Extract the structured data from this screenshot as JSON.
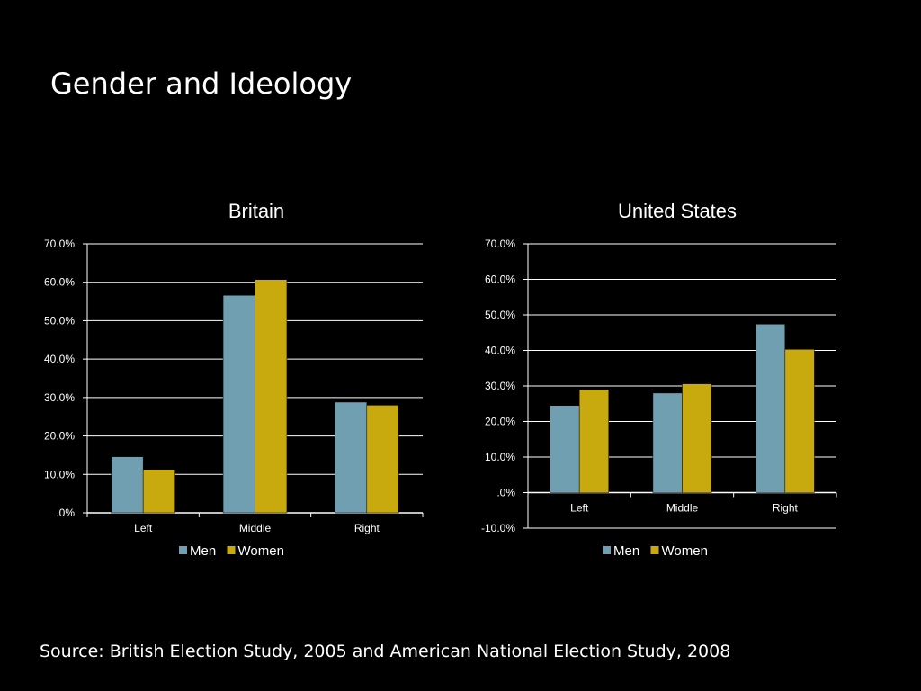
{
  "slide": {
    "title": "Gender and Ideology",
    "source": "Source: British Election Study, 2005 and American National Election Study, 2008"
  },
  "colors": {
    "background": "#000000",
    "men": "#6f9fb1",
    "women": "#c9aa0e",
    "text": "#ffffff",
    "grid": "#ffffff"
  },
  "chart_data": [
    {
      "type": "bar",
      "title": "Britain",
      "categories": [
        "Left",
        "Middle",
        "Right"
      ],
      "series": [
        {
          "name": "Men",
          "values": [
            14.6,
            56.6,
            28.8
          ]
        },
        {
          "name": "Women",
          "values": [
            11.3,
            60.7,
            28.0
          ]
        }
      ],
      "ylim": [
        0,
        70
      ],
      "yticks": [
        ".0%",
        "10.0%",
        "20.0%",
        "30.0%",
        "40.0%",
        "50.0%",
        "60.0%",
        "70.0%"
      ],
      "xlabel": "",
      "ylabel": "",
      "grid": true,
      "legend": "bottom"
    },
    {
      "type": "bar",
      "title": "United States",
      "categories": [
        "Left",
        "Middle",
        "Right"
      ],
      "series": [
        {
          "name": "Men",
          "values": [
            24.5,
            28.0,
            47.4
          ]
        },
        {
          "name": "Women",
          "values": [
            29.0,
            30.6,
            40.3
          ]
        }
      ],
      "ylim": [
        -10,
        70
      ],
      "yticks": [
        "-10.0%",
        ".0%",
        "10.0%",
        "20.0%",
        "30.0%",
        "40.0%",
        "50.0%",
        "60.0%",
        "70.0%"
      ],
      "xlabel": "",
      "ylabel": "",
      "grid": true,
      "legend": "bottom"
    }
  ]
}
